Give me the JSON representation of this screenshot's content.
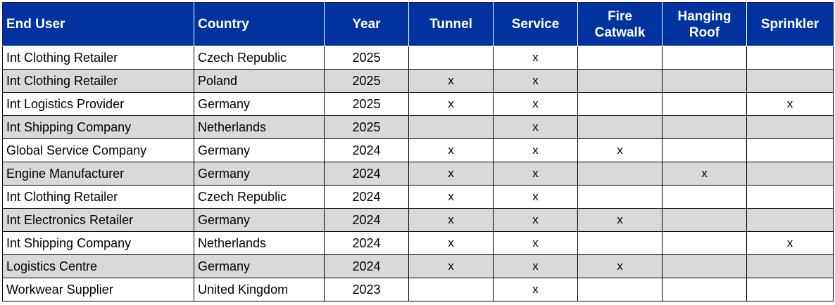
{
  "table": {
    "headers": [
      "End User",
      "Country",
      "Year",
      "Tunnel",
      "Service",
      "Fire\nCatwalk",
      "Hanging\nRoof",
      "Sprinkler"
    ],
    "rows": [
      [
        "Int Clothing Retailer",
        "Czech Republic",
        "2025",
        "",
        "x",
        "",
        "",
        ""
      ],
      [
        "Int Clothing Retailer",
        "Poland",
        "2025",
        "x",
        "x",
        "",
        "",
        ""
      ],
      [
        "Int Logistics Provider",
        "Germany",
        "2025",
        "x",
        "x",
        "",
        "",
        "x"
      ],
      [
        "Int Shipping Company",
        "Netherlands",
        "2025",
        "",
        "x",
        "",
        "",
        ""
      ],
      [
        "Global Service Company",
        "Germany",
        "2024",
        "x",
        "x",
        "x",
        "",
        ""
      ],
      [
        "Engine Manufacturer",
        "Germany",
        "2024",
        "x",
        "x",
        "",
        "x",
        ""
      ],
      [
        "Int Clothing Retailer",
        "Czech Republic",
        "2024",
        "x",
        "x",
        "",
        "",
        ""
      ],
      [
        "Int Electronics Retailer",
        "Germany",
        "2024",
        "x",
        "x",
        "x",
        "",
        ""
      ],
      [
        "Int Shipping Company",
        "Netherlands",
        "2024",
        "x",
        "x",
        "",
        "",
        "x"
      ],
      [
        "Logistics Centre",
        "Germany",
        "2024",
        "x",
        "x",
        "x",
        "",
        ""
      ],
      [
        "Workwear Supplier",
        "United Kingdom",
        "2023",
        "",
        "x",
        "",
        "",
        ""
      ]
    ]
  },
  "colors": {
    "header_bg": "#0033A0",
    "header_text": "#ffffff",
    "alt_row_bg": "#d9d9d9",
    "row_bg": "#ffffff"
  }
}
